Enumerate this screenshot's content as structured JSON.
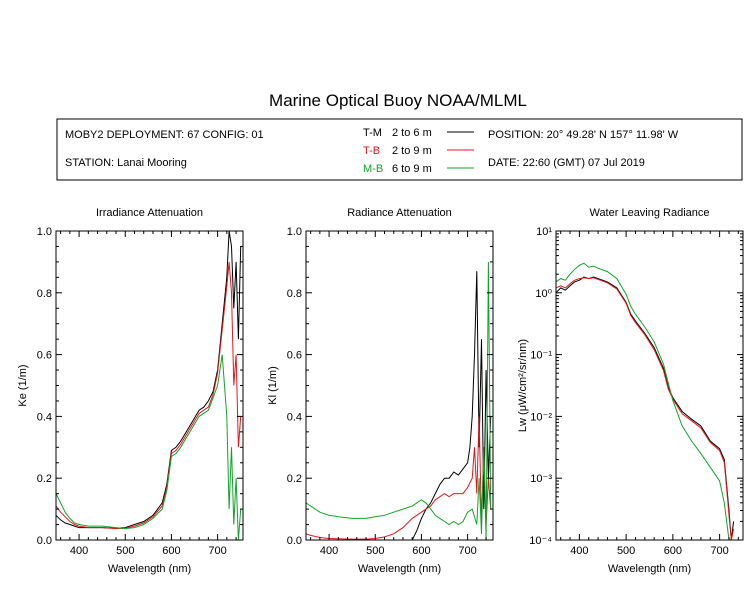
{
  "title": "Marine Optical Buoy NOAA/MLML",
  "info": {
    "deployment": "MOBY2 DEPLOYMENT: 67 CONFIG: 01",
    "station": "STATION: Lanai Mooring",
    "position": "POSITION: 20° 49.28' N   157° 11.98' W",
    "date": "DATE: 22:60 (GMT) 07 Jul 2019",
    "legend": [
      {
        "code": "T-M",
        "range": "2 to 6  m",
        "color": "#000000"
      },
      {
        "code": "T-B",
        "range": "2 to 9  m",
        "color": "#e8141b"
      },
      {
        "code": "M-B",
        "range": "6 to 9  m",
        "color": "#10a52a"
      }
    ]
  },
  "chart_data": [
    {
      "type": "line",
      "title": "Irradiance Attenuation",
      "xlabel": "Wavelength (nm)",
      "ylabel": "Ke  (1/m)",
      "xlim": [
        350,
        755
      ],
      "ylim": [
        0,
        1.0
      ],
      "xticks": [
        400,
        500,
        600,
        700
      ],
      "yticks": [
        0.0,
        0.2,
        0.4,
        0.6,
        0.8,
        1.0
      ],
      "ytick_labels": [
        "0.0",
        "0.2",
        "0.4",
        "0.6",
        "0.8",
        "1.0"
      ],
      "series": [
        {
          "name": "T-M",
          "color": "#000000",
          "x": [
            350,
            360,
            370,
            380,
            390,
            400,
            420,
            450,
            480,
            500,
            520,
            540,
            560,
            580,
            590,
            600,
            610,
            620,
            640,
            660,
            670,
            680,
            690,
            700,
            710,
            720,
            725,
            730,
            735,
            740,
            745,
            750
          ],
          "y": [
            0.08,
            0.065,
            0.055,
            0.05,
            0.045,
            0.04,
            0.04,
            0.04,
            0.038,
            0.04,
            0.05,
            0.06,
            0.08,
            0.12,
            0.18,
            0.29,
            0.3,
            0.32,
            0.37,
            0.42,
            0.43,
            0.45,
            0.48,
            0.55,
            0.7,
            0.85,
            1.0,
            0.95,
            0.75,
            0.9,
            0.65,
            0.95
          ]
        },
        {
          "name": "T-B",
          "color": "#e8141b",
          "x": [
            350,
            360,
            370,
            380,
            390,
            400,
            420,
            450,
            480,
            500,
            520,
            540,
            560,
            580,
            590,
            600,
            610,
            620,
            640,
            660,
            670,
            680,
            690,
            700,
            710,
            720,
            725,
            730,
            735,
            740,
            745,
            750
          ],
          "y": [
            0.11,
            0.09,
            0.075,
            0.06,
            0.05,
            0.045,
            0.04,
            0.04,
            0.037,
            0.038,
            0.045,
            0.055,
            0.075,
            0.11,
            0.17,
            0.28,
            0.29,
            0.31,
            0.36,
            0.41,
            0.42,
            0.43,
            0.47,
            0.54,
            0.68,
            0.82,
            0.9,
            0.8,
            0.5,
            0.6,
            0.3,
            0.4
          ]
        },
        {
          "name": "M-B",
          "color": "#10a52a",
          "x": [
            350,
            360,
            370,
            380,
            390,
            400,
            420,
            450,
            480,
            500,
            520,
            540,
            560,
            580,
            590,
            600,
            610,
            620,
            640,
            660,
            670,
            680,
            690,
            700,
            710,
            720,
            725,
            730,
            735,
            740,
            745,
            750
          ],
          "y": [
            0.15,
            0.12,
            0.09,
            0.07,
            0.055,
            0.05,
            0.045,
            0.045,
            0.04,
            0.037,
            0.04,
            0.05,
            0.07,
            0.1,
            0.16,
            0.27,
            0.28,
            0.3,
            0.35,
            0.4,
            0.41,
            0.42,
            0.46,
            0.5,
            0.6,
            0.4,
            0.1,
            0.3,
            0.05,
            0.2,
            0.0,
            0.1
          ]
        }
      ]
    },
    {
      "type": "line",
      "title": "Radiance Attenuation",
      "xlabel": "Wavelength (nm)",
      "ylabel": "Kl  (1/m)",
      "xlim": [
        350,
        755
      ],
      "ylim": [
        0,
        1.0
      ],
      "xticks": [
        400,
        500,
        600,
        700
      ],
      "yticks": [
        0.0,
        0.2,
        0.4,
        0.6,
        0.8,
        1.0
      ],
      "ytick_labels": [
        "0.0",
        "0.2",
        "0.4",
        "0.6",
        "0.8",
        "1.0"
      ],
      "series": [
        {
          "name": "T-M",
          "color": "#000000",
          "x": [
            580,
            590,
            600,
            610,
            620,
            630,
            640,
            650,
            660,
            670,
            680,
            690,
            700,
            705,
            710,
            715,
            720,
            725,
            730,
            735,
            740,
            745,
            750
          ],
          "y": [
            0.0,
            0.03,
            0.07,
            0.1,
            0.12,
            0.15,
            0.18,
            0.2,
            0.2,
            0.22,
            0.21,
            0.23,
            0.25,
            0.3,
            0.4,
            0.6,
            0.87,
            0.3,
            0.65,
            0.1,
            0.55,
            0.2,
            0.4
          ]
        },
        {
          "name": "T-B",
          "color": "#e8141b",
          "x": [
            350,
            360,
            380,
            400,
            420,
            450,
            480,
            500,
            520,
            540,
            560,
            580,
            590,
            600,
            610,
            620,
            630,
            640,
            650,
            660,
            670,
            680,
            690,
            700,
            710,
            715,
            720,
            725,
            730,
            735,
            740,
            745,
            750
          ],
          "y": [
            0.02,
            0.015,
            0.008,
            0.005,
            0.004,
            0.003,
            0.003,
            0.005,
            0.01,
            0.02,
            0.04,
            0.07,
            0.08,
            0.09,
            0.1,
            0.11,
            0.13,
            0.14,
            0.15,
            0.14,
            0.15,
            0.15,
            0.15,
            0.17,
            0.2,
            0.3,
            0.15,
            0.4,
            0.05,
            0.3,
            0.05,
            0.2,
            0.1
          ]
        },
        {
          "name": "M-B",
          "color": "#10a52a",
          "x": [
            350,
            360,
            380,
            400,
            420,
            450,
            480,
            500,
            520,
            540,
            560,
            580,
            590,
            600,
            610,
            620,
            630,
            640,
            650,
            660,
            670,
            680,
            690,
            700,
            710,
            720,
            725,
            730,
            735,
            740,
            745,
            750
          ],
          "y": [
            0.12,
            0.11,
            0.09,
            0.08,
            0.075,
            0.07,
            0.07,
            0.075,
            0.08,
            0.09,
            0.1,
            0.11,
            0.12,
            0.13,
            0.12,
            0.1,
            0.08,
            0.07,
            0.06,
            0.05,
            0.06,
            0.05,
            0.06,
            0.09,
            0.1,
            0.05,
            0.2,
            0.02,
            0.3,
            0.0,
            0.9,
            0.1
          ]
        }
      ]
    },
    {
      "type": "line",
      "title": "Water Leaving Radiance",
      "xlabel": "Wavelength (nm)",
      "ylabel": "Lw  (μW/cm²/sr/nm)",
      "yscale": "log",
      "xlim": [
        350,
        750
      ],
      "ylim": [
        0.0001,
        10
      ],
      "xticks": [
        400,
        500,
        600,
        700
      ],
      "yticks": [
        0.0001,
        0.001,
        0.01,
        0.1,
        1,
        10
      ],
      "ytick_labels": [
        "10⁻⁴",
        "10⁻³",
        "10⁻²",
        "10⁻¹",
        "10⁰",
        "10¹"
      ],
      "series": [
        {
          "name": "T-M",
          "color": "#000000",
          "x": [
            350,
            360,
            370,
            380,
            390,
            400,
            410,
            420,
            430,
            440,
            460,
            480,
            500,
            510,
            520,
            540,
            560,
            580,
            590,
            600,
            620,
            640,
            660,
            680,
            700,
            710,
            720,
            725,
            730
          ],
          "y": [
            1.0,
            1.2,
            1.1,
            1.3,
            1.5,
            1.6,
            1.8,
            1.7,
            1.8,
            1.7,
            1.5,
            1.2,
            0.7,
            0.45,
            0.35,
            0.22,
            0.13,
            0.06,
            0.03,
            0.02,
            0.012,
            0.009,
            0.007,
            0.004,
            0.003,
            0.002,
            0.0003,
            0.0001,
            0.0002
          ]
        },
        {
          "name": "T-B",
          "color": "#e8141b",
          "x": [
            350,
            360,
            370,
            380,
            390,
            400,
            410,
            420,
            430,
            440,
            460,
            480,
            500,
            510,
            520,
            540,
            560,
            580,
            590,
            600,
            620,
            640,
            660,
            680,
            700,
            710,
            720,
            725,
            730
          ],
          "y": [
            1.2,
            1.3,
            1.2,
            1.4,
            1.6,
            1.7,
            1.75,
            1.7,
            1.75,
            1.65,
            1.45,
            1.15,
            0.68,
            0.43,
            0.33,
            0.21,
            0.12,
            0.055,
            0.028,
            0.019,
            0.011,
            0.0085,
            0.0065,
            0.0038,
            0.0028,
            0.0018,
            0.00025,
            0.0001,
            0.00015
          ]
        },
        {
          "name": "M-B",
          "color": "#10a52a",
          "x": [
            350,
            360,
            370,
            380,
            390,
            400,
            410,
            420,
            430,
            440,
            460,
            480,
            500,
            510,
            520,
            540,
            560,
            580,
            590,
            600,
            620,
            640,
            660,
            680,
            700,
            710,
            720,
            725
          ],
          "y": [
            1.5,
            1.7,
            1.6,
            2.0,
            2.4,
            2.8,
            3.0,
            2.6,
            2.7,
            2.5,
            2.2,
            1.7,
            0.95,
            0.6,
            0.45,
            0.28,
            0.16,
            0.07,
            0.035,
            0.018,
            0.007,
            0.004,
            0.0025,
            0.0015,
            0.0009,
            0.0004,
            0.0001,
            0.0001
          ]
        }
      ]
    }
  ]
}
